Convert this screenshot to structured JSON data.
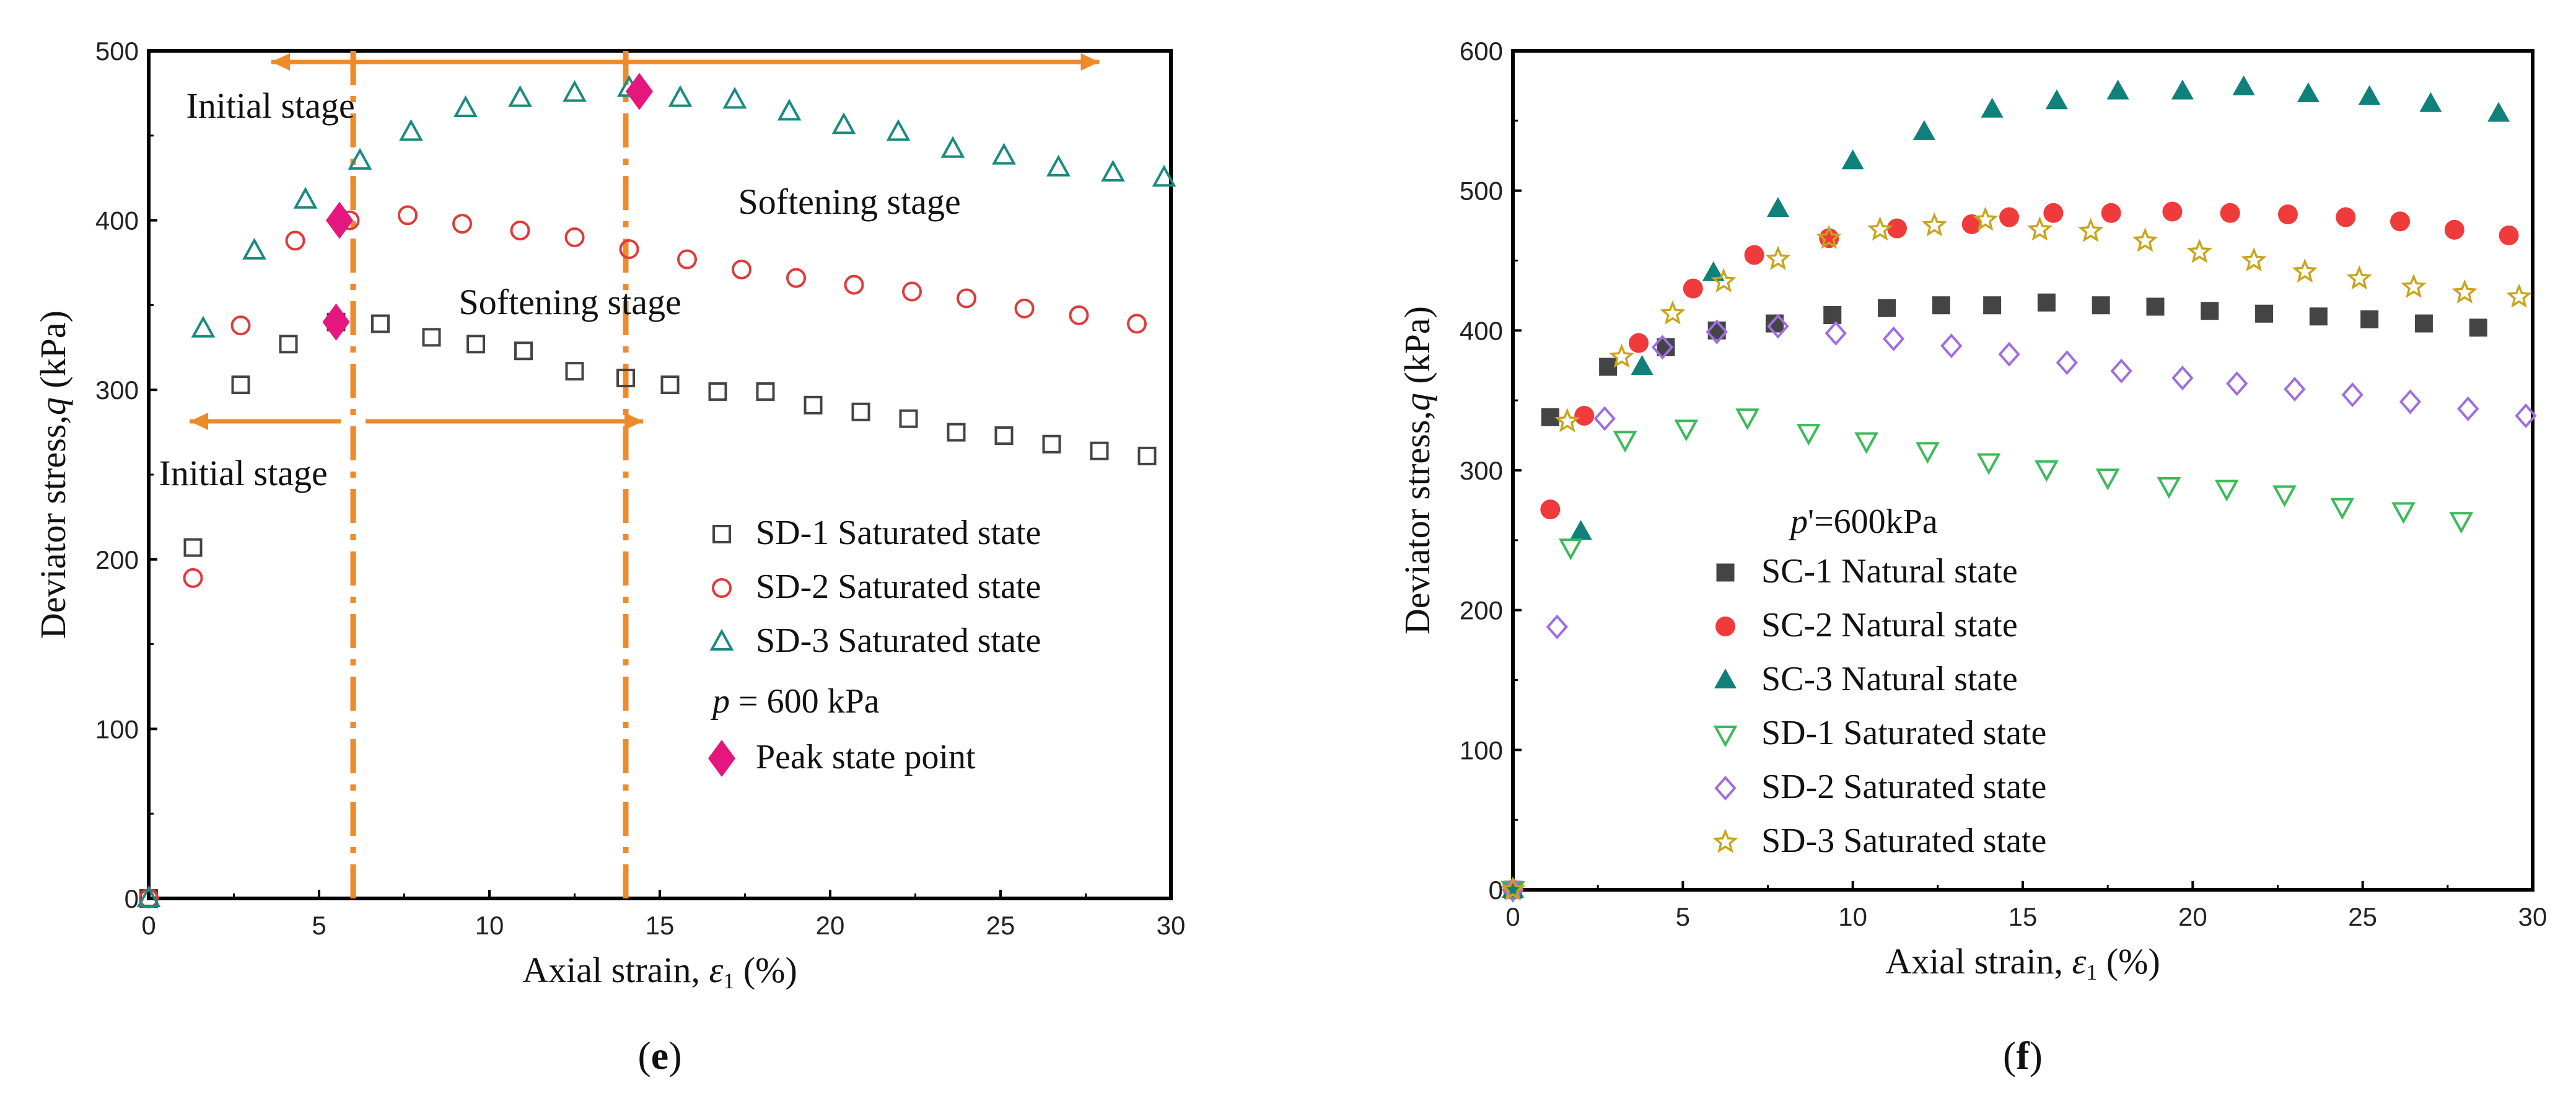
{
  "chart_data": [
    {
      "type": "scatter",
      "panel_label": {
        "open": "(",
        "letter": "e",
        "close": ")"
      },
      "xlabel": "Axial strain, ",
      "xlabel_symbol": "ε",
      "xlabel_sub": "1",
      "xlabel_unit": " (%)",
      "ylabel": "Deviator stress,",
      "ylabel_symbol": "q",
      "ylabel_unit": " (kPa)",
      "xlim": [
        0,
        30
      ],
      "ylim": [
        0,
        500
      ],
      "xticks": [
        0,
        5,
        10,
        15,
        20,
        25,
        30
      ],
      "yticks": [
        0,
        100,
        200,
        300,
        400,
        500
      ],
      "series": [
        {
          "name": "SD-1 Saturated state",
          "marker": "square-open",
          "color": "#444444",
          "x": [
            0,
            1.3,
            2.7,
            4.1,
            5.5,
            6.8,
            8.3,
            9.6,
            11.0,
            12.5,
            14.0,
            15.3,
            16.7,
            18.1,
            19.5,
            20.9,
            22.3,
            23.7,
            25.1,
            26.5,
            27.9,
            29.3
          ],
          "y": [
            0,
            207,
            303,
            327,
            340,
            339,
            331,
            327,
            323,
            311,
            307,
            303,
            299,
            299,
            291,
            287,
            283,
            275,
            273,
            268,
            264,
            261
          ]
        },
        {
          "name": "SD-2 Saturated state",
          "marker": "circle-open",
          "color": "#e03a3a",
          "x": [
            0,
            1.3,
            2.7,
            4.3,
            5.9,
            7.6,
            9.2,
            10.9,
            12.5,
            14.1,
            15.8,
            17.4,
            19.0,
            20.7,
            22.4,
            24.0,
            25.7,
            27.3,
            29.0
          ],
          "y": [
            0,
            189,
            338,
            388,
            400,
            403,
            398,
            394,
            390,
            383,
            377,
            371,
            366,
            362,
            358,
            354,
            348,
            344,
            339
          ]
        },
        {
          "name": "SD-3 Saturated state",
          "marker": "triangle-open",
          "color": "#1a8a80",
          "x": [
            0,
            1.6,
            3.1,
            4.6,
            6.2,
            7.7,
            9.3,
            10.9,
            12.5,
            14.1,
            15.6,
            17.2,
            18.8,
            20.4,
            22.0,
            23.6,
            25.1,
            26.7,
            28.3,
            29.8
          ],
          "y": [
            0,
            336,
            382,
            412,
            435,
            452,
            466,
            472,
            475,
            478,
            472,
            471,
            464,
            456,
            452,
            442,
            438,
            431,
            428,
            425
          ]
        },
        {
          "name": "Peak state point",
          "marker": "diamond-filled",
          "color": "#e5177e",
          "x": [
            5.5,
            5.6,
            14.4
          ],
          "y": [
            340,
            400,
            476
          ]
        }
      ],
      "legend": {
        "placement": "center-right",
        "entries": [
          "SD-1 Saturated state",
          "SD-2 Saturated state",
          "SD-3 Saturated state",
          "Peak state point"
        ],
        "condition_symbol": "p",
        "condition_value": " = 600 kPa"
      },
      "annotations": {
        "stage_lines_strain": [
          6.0,
          14.0
        ],
        "stage_line_color": "#ef8a2b",
        "initial_stage_upper": "Initial stage",
        "softening_stage_upper": "Softening stage",
        "initial_stage_lower": "Initial stage",
        "softening_stage_lower": "Softening stage"
      }
    },
    {
      "type": "scatter",
      "panel_label": {
        "open": "(",
        "letter": "f",
        "close": ")"
      },
      "xlabel": "Axial strain, ",
      "xlabel_symbol": "ε",
      "xlabel_sub": "1",
      "xlabel_unit": " (%)",
      "ylabel": "Deviator stress,",
      "ylabel_symbol": "q",
      "ylabel_unit": " (kPa)",
      "xlim": [
        0,
        30
      ],
      "ylim": [
        0,
        600
      ],
      "xticks": [
        0,
        5,
        10,
        15,
        20,
        25,
        30
      ],
      "yticks": [
        0,
        100,
        200,
        300,
        400,
        500,
        600
      ],
      "series": [
        {
          "name": "SC-1 Natural state",
          "marker": "square-filled",
          "color": "#444444",
          "x": [
            0,
            1.1,
            2.8,
            4.5,
            6.0,
            7.7,
            9.4,
            11.0,
            12.6,
            14.1,
            15.7,
            17.3,
            18.9,
            20.5,
            22.1,
            23.7,
            25.2,
            26.8,
            28.4
          ],
          "y": [
            0,
            338,
            374,
            388,
            400,
            405,
            411,
            416,
            418,
            418,
            420,
            418,
            417,
            414,
            412,
            410,
            408,
            405,
            402
          ]
        },
        {
          "name": "SC-2 Natural state",
          "marker": "circle-filled",
          "color": "#ef3b3b",
          "x": [
            0,
            1.1,
            2.1,
            3.7,
            5.3,
            7.1,
            9.3,
            11.3,
            13.5,
            14.6,
            15.9,
            17.6,
            19.4,
            21.1,
            22.8,
            24.5,
            26.1,
            27.7,
            29.3
          ],
          "y": [
            0,
            272,
            339,
            391,
            430,
            454,
            466,
            473,
            476,
            481,
            484,
            484,
            485,
            484,
            483,
            481,
            478,
            472,
            468
          ]
        },
        {
          "name": "SC-3 Natural state",
          "marker": "triangle-filled",
          "color": "#10807a",
          "x": [
            0,
            2.0,
            3.8,
            5.9,
            7.8,
            10.0,
            12.1,
            14.1,
            16.0,
            17.8,
            19.7,
            21.5,
            23.4,
            25.2,
            27.0,
            29.0
          ],
          "y": [
            0,
            256,
            374,
            441,
            487,
            521,
            542,
            558,
            564,
            571,
            571,
            574,
            569,
            567,
            562,
            555
          ]
        },
        {
          "name": "SD-1 Saturated state",
          "marker": "triangle-down-open",
          "color": "#3cba5a",
          "x": [
            0,
            1.7,
            3.3,
            5.1,
            6.9,
            8.7,
            10.4,
            12.2,
            14.0,
            15.7,
            17.5,
            19.3,
            21.0,
            22.7,
            24.4,
            26.2,
            27.9
          ],
          "y": [
            0,
            245,
            322,
            330,
            338,
            327,
            321,
            314,
            306,
            301,
            295,
            289,
            287,
            283,
            274,
            271,
            264
          ]
        },
        {
          "name": "SD-2 Saturated state",
          "marker": "diamond-open",
          "color": "#9f6ee0",
          "x": [
            0,
            1.3,
            2.7,
            4.4,
            6.0,
            7.8,
            9.5,
            11.2,
            12.9,
            14.6,
            16.3,
            17.9,
            19.7,
            21.3,
            23.0,
            24.7,
            26.4,
            28.1,
            29.8
          ],
          "y": [
            0,
            188,
            337,
            388,
            399,
            403,
            398,
            394,
            389,
            383,
            377,
            371,
            366,
            362,
            358,
            354,
            349,
            344,
            339
          ]
        },
        {
          "name": "SD-3 Saturated state",
          "marker": "star-open",
          "color": "#c8a51a",
          "x": [
            0,
            1.6,
            3.2,
            4.7,
            6.2,
            7.8,
            9.3,
            10.8,
            12.4,
            13.9,
            15.5,
            17.0,
            18.6,
            20.2,
            21.8,
            23.3,
            24.9,
            26.5,
            28.0,
            29.6
          ],
          "y": [
            0,
            335,
            381,
            412,
            435,
            451,
            466,
            472,
            475,
            479,
            472,
            471,
            464,
            456,
            450,
            442,
            437,
            431,
            427,
            424
          ]
        }
      ],
      "legend": {
        "placement": "lower-left",
        "condition_symbol": "p",
        "condition_value": "'=600kPa",
        "entries": [
          "SC-1 Natural state",
          "SC-2 Natural state",
          "SC-3 Natural state",
          "SD-1 Saturated state",
          "SD-2 Saturated state",
          "SD-3 Saturated state"
        ]
      }
    }
  ]
}
